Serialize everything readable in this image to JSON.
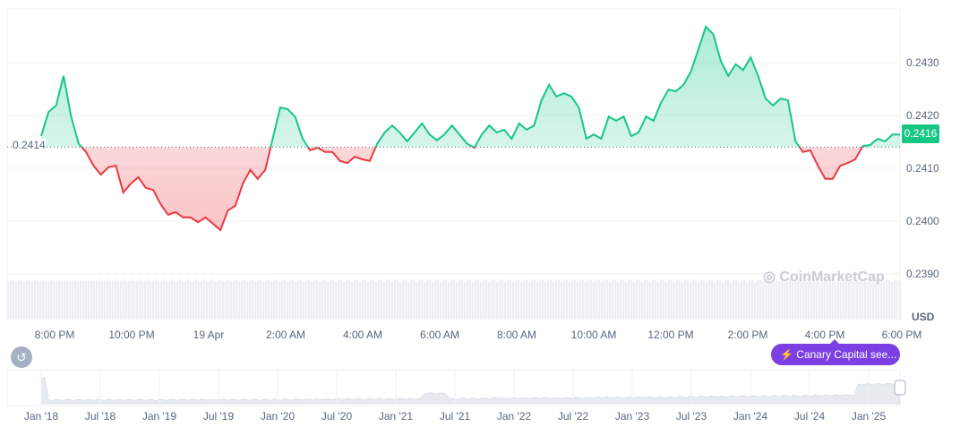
{
  "chart_data": {
    "type": "area",
    "currency": "USD",
    "baseline": 0.2414,
    "baseline_label": "0.2414",
    "current_price_label": "0.2416",
    "ylim": [
      0.2387,
      0.2438
    ],
    "yticks": [
      "0.2430",
      "0.2420",
      "0.2410",
      "0.2400",
      "0.2390"
    ],
    "xticks": [
      "8:00 PM",
      "10:00 PM",
      "19 Apr",
      "2:00 AM",
      "4:00 AM",
      "6:00 AM",
      "8:00 AM",
      "10:00 AM",
      "12:00 PM",
      "2:00 PM",
      "4:00 PM",
      "6:00 PM"
    ],
    "grid": true,
    "colors": {
      "up": "#16c784",
      "down": "#ea3943"
    },
    "values": [
      0.24161,
      0.24207,
      0.24219,
      0.24275,
      0.24198,
      0.24147,
      0.24131,
      0.24105,
      0.24088,
      0.24102,
      0.24105,
      0.24054,
      0.24071,
      0.24083,
      0.24063,
      0.24059,
      0.24032,
      0.24012,
      0.24017,
      0.24007,
      0.24007,
      0.23998,
      0.24007,
      0.23995,
      0.23983,
      0.2402,
      0.24029,
      0.24071,
      0.24097,
      0.2408,
      0.24097,
      0.24156,
      0.24215,
      0.24212,
      0.24198,
      0.24156,
      0.24134,
      0.24139,
      0.24131,
      0.24131,
      0.24114,
      0.2411,
      0.24122,
      0.24117,
      0.24114,
      0.24147,
      0.24168,
      0.24181,
      0.24168,
      0.24151,
      0.24168,
      0.24185,
      0.24164,
      0.24153,
      0.24164,
      0.24181,
      0.24164,
      0.24147,
      0.24139,
      0.24164,
      0.24181,
      0.24168,
      0.24173,
      0.24156,
      0.24185,
      0.24173,
      0.24181,
      0.24229,
      0.24258,
      0.24236,
      0.24242,
      0.24236,
      0.24215,
      0.24156,
      0.24164,
      0.24156,
      0.24198,
      0.2419,
      0.24198,
      0.24161,
      0.24168,
      0.24198,
      0.2419,
      0.24224,
      0.24249,
      0.24246,
      0.24258,
      0.24283,
      0.24325,
      0.24368,
      0.24354,
      0.24303,
      0.24275,
      0.24297,
      0.24286,
      0.2431,
      0.24275,
      0.24232,
      0.24219,
      0.24232,
      0.24229,
      0.24151,
      0.24131,
      0.24134,
      0.24105,
      0.2408,
      0.2408,
      0.24105,
      0.2411,
      0.24117,
      0.24142,
      0.24144,
      0.24156,
      0.24151,
      0.24164,
      0.24164
    ]
  },
  "navigator": {
    "xticks": [
      "Jan '18",
      "Jul '18",
      "Jan '19",
      "Jul '19",
      "Jan '20",
      "Jul '20",
      "Jan '21",
      "Jul '21",
      "Jan '22",
      "Jul '22",
      "Jan '23",
      "Jul '23",
      "Jan '24",
      "Jul '24",
      "Jan '25"
    ]
  },
  "watermark": "CoinMarketCap",
  "news_badge": "Canary Capital see...",
  "currency_label": "USD"
}
